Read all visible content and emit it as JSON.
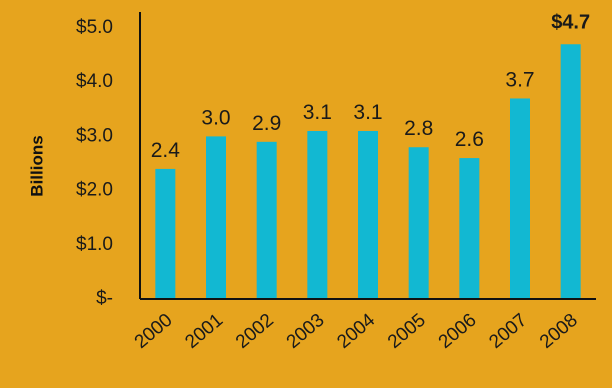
{
  "colors": {
    "background": "#E6A41E",
    "bar": "#12B8D2",
    "axis": "#111111"
  },
  "chart_data": {
    "type": "bar",
    "title": "",
    "xlabel": "",
    "ylabel": "Billions",
    "categories": [
      "2000",
      "2001",
      "2002",
      "2003",
      "2004",
      "2005",
      "2006",
      "2007",
      "2008"
    ],
    "values": [
      2.4,
      3.0,
      2.9,
      3.1,
      3.1,
      2.8,
      2.6,
      3.7,
      4.7
    ],
    "data_labels": [
      "2.4",
      "3.0",
      "2.9",
      "3.1",
      "3.1",
      "2.8",
      "2.6",
      "3.7",
      "$4.7"
    ],
    "emphasized_label_index": 8,
    "ylim": [
      0,
      5
    ],
    "yticks": [
      0,
      1,
      2,
      3,
      4,
      5
    ],
    "ytick_labels": [
      "$-",
      "$1.0",
      "$2.0",
      "$3.0",
      "$4.0",
      "$5.0"
    ],
    "grid": false,
    "legend": "none",
    "xtick_rotation": "diagonal"
  }
}
